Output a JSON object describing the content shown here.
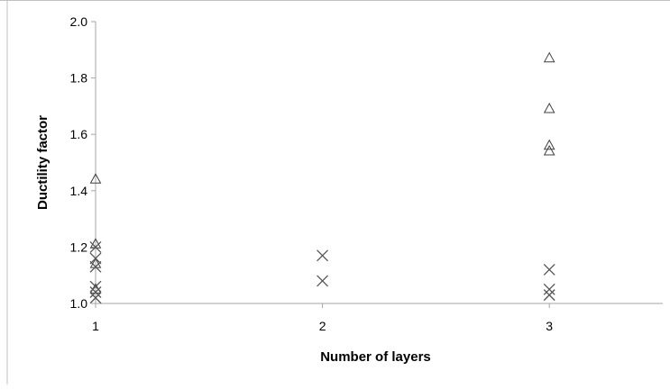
{
  "chart_data": {
    "type": "scatter",
    "title": "",
    "xlabel": "Number of layers",
    "ylabel": "Ductility factor",
    "x_ticks": [
      "1",
      "2",
      "3"
    ],
    "y_ticks": [
      "1.0",
      "1.2",
      "1.4",
      "1.6",
      "1.8",
      "2.0"
    ],
    "xlim": [
      1,
      3.5
    ],
    "ylim": [
      1.0,
      2.0
    ],
    "grid": false,
    "legend": "none",
    "series": [
      {
        "marker": "triangle",
        "color": "#404040",
        "points": [
          {
            "x": 1,
            "y": 1.44
          },
          {
            "x": 1,
            "y": 1.21
          },
          {
            "x": 1,
            "y": 1.14
          },
          {
            "x": 1,
            "y": 1.05
          },
          {
            "x": 3,
            "y": 1.87
          },
          {
            "x": 3,
            "y": 1.69
          },
          {
            "x": 3,
            "y": 1.56
          },
          {
            "x": 3,
            "y": 1.54
          }
        ]
      },
      {
        "marker": "cross",
        "color": "#555555",
        "points": [
          {
            "x": 1,
            "y": 1.2
          },
          {
            "x": 1,
            "y": 1.16
          },
          {
            "x": 1,
            "y": 1.13
          },
          {
            "x": 1,
            "y": 1.06
          },
          {
            "x": 1,
            "y": 1.04
          },
          {
            "x": 1,
            "y": 1.02
          },
          {
            "x": 2,
            "y": 1.17
          },
          {
            "x": 2,
            "y": 1.08
          },
          {
            "x": 3,
            "y": 1.12
          },
          {
            "x": 3,
            "y": 1.05
          },
          {
            "x": 3,
            "y": 1.03
          }
        ]
      }
    ]
  }
}
